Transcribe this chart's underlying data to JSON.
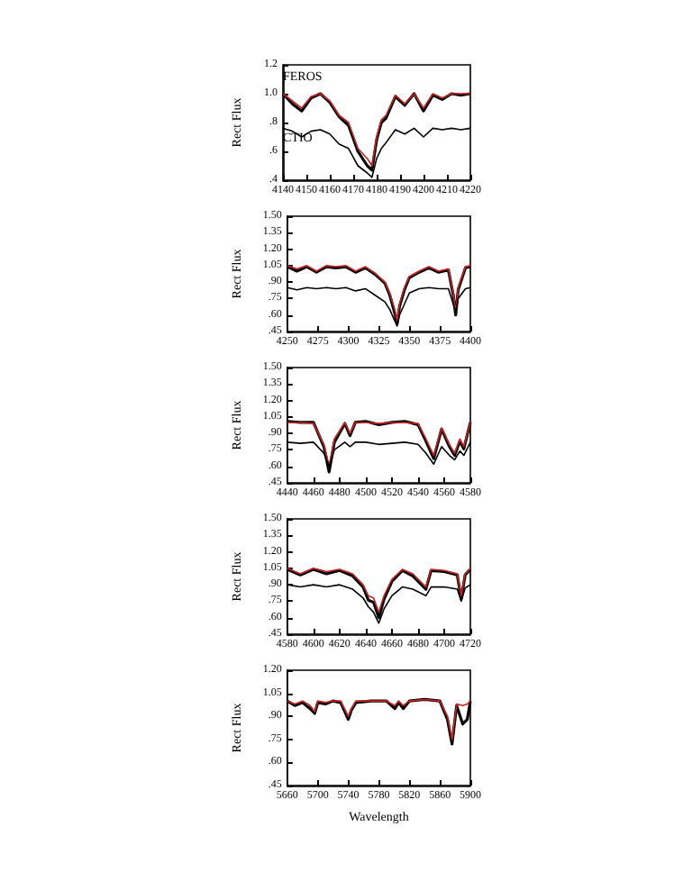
{
  "chart_data": [
    {
      "type": "line",
      "ylabel": "Rect Flux",
      "xlim": [
        4140,
        4220
      ],
      "xticks": [
        4140,
        4150,
        4160,
        4170,
        4180,
        4190,
        4200,
        4210,
        4220
      ],
      "ylim": [
        0.4,
        1.2
      ],
      "yticks": [
        {
          "value": 0.4,
          "label": ".4"
        },
        {
          "value": 0.6,
          "label": ".6"
        },
        {
          "value": 0.8,
          "label": ".8"
        },
        {
          "value": 1.0,
          "label": "1.0"
        },
        {
          "value": 1.2,
          "label": "1.2"
        }
      ],
      "grid": false,
      "marker": "none",
      "x": [
        4140,
        4144,
        4148,
        4152,
        4156,
        4160,
        4164,
        4168,
        4172,
        4176,
        4178,
        4180,
        4182,
        4184,
        4188,
        4192,
        4196,
        4200,
        4204,
        4208,
        4212,
        4216,
        4220
      ],
      "annotations": [
        "FEROS",
        "CTIO"
      ],
      "series": [
        {
          "color": "#000000",
          "values": [
            1.0,
            0.93,
            0.88,
            0.97,
            1.0,
            0.94,
            0.84,
            0.78,
            0.6,
            0.5,
            0.47,
            0.68,
            0.8,
            0.83,
            0.98,
            0.92,
            1.0,
            0.88,
            0.99,
            0.96,
            1.0,
            0.99,
            1.0
          ]
        },
        {
          "color": "#cc2222",
          "values": [
            1.0,
            0.95,
            0.9,
            0.98,
            1.0,
            0.95,
            0.85,
            0.8,
            0.62,
            0.55,
            0.5,
            0.7,
            0.82,
            0.85,
            0.99,
            0.93,
            1.0,
            0.9,
            1.0,
            0.97,
            1.0,
            1.0,
            1.0
          ]
        },
        {
          "color": "#000000",
          "values": [
            0.76,
            0.74,
            0.7,
            0.74,
            0.75,
            0.72,
            0.65,
            0.62,
            0.5,
            0.45,
            0.42,
            0.55,
            0.62,
            0.66,
            0.75,
            0.72,
            0.76,
            0.7,
            0.76,
            0.75,
            0.76,
            0.75,
            0.76
          ]
        }
      ]
    },
    {
      "type": "line",
      "ylabel": "Rect Flux",
      "xlim": [
        4250,
        4400
      ],
      "xticks": [
        4250,
        4275,
        4300,
        4325,
        4350,
        4375,
        4400
      ],
      "ylim": [
        0.45,
        1.5
      ],
      "yticks": [
        {
          "value": 0.45,
          "label": ".45"
        },
        {
          "value": 0.6,
          "label": ".60"
        },
        {
          "value": 0.75,
          "label": ".75"
        },
        {
          "value": 0.9,
          "label": ".90"
        },
        {
          "value": 1.05,
          "label": "1.05"
        },
        {
          "value": 1.2,
          "label": "1.20"
        },
        {
          "value": 1.35,
          "label": "1.35"
        },
        {
          "value": 1.5,
          "label": "1.50"
        }
      ],
      "grid": false,
      "marker": "none",
      "x": [
        4250,
        4258,
        4266,
        4274,
        4282,
        4290,
        4298,
        4306,
        4314,
        4322,
        4330,
        4334,
        4338,
        4340,
        4342,
        4346,
        4350,
        4358,
        4366,
        4374,
        4382,
        4386,
        4388,
        4390,
        4396,
        4400
      ],
      "series": [
        {
          "color": "#000000",
          "values": [
            1.04,
            1.0,
            1.04,
            0.99,
            1.04,
            1.03,
            1.04,
            0.99,
            1.03,
            0.97,
            0.89,
            0.78,
            0.62,
            0.52,
            0.68,
            0.83,
            0.94,
            0.99,
            1.03,
            0.99,
            1.01,
            0.78,
            0.6,
            0.83,
            1.03,
            1.04
          ]
        },
        {
          "color": "#cc2222",
          "values": [
            1.05,
            1.02,
            1.05,
            1.0,
            1.05,
            1.04,
            1.05,
            1.0,
            1.04,
            0.98,
            0.9,
            0.8,
            0.65,
            0.55,
            0.7,
            0.85,
            0.95,
            1.0,
            1.04,
            1.0,
            1.02,
            0.8,
            0.62,
            0.85,
            1.04,
            1.05
          ]
        },
        {
          "color": "#000000",
          "values": [
            0.85,
            0.83,
            0.85,
            0.84,
            0.85,
            0.84,
            0.85,
            0.82,
            0.84,
            0.78,
            0.72,
            0.65,
            0.55,
            0.5,
            0.6,
            0.7,
            0.8,
            0.84,
            0.85,
            0.84,
            0.84,
            0.7,
            0.62,
            0.75,
            0.84,
            0.85
          ]
        }
      ]
    },
    {
      "type": "line",
      "ylabel": "Rect Flux",
      "xlim": [
        4440,
        4580
      ],
      "xticks": [
        4440,
        4460,
        4480,
        4500,
        4520,
        4540,
        4560,
        4580
      ],
      "ylim": [
        0.45,
        1.5
      ],
      "yticks": [
        {
          "value": 0.45,
          "label": ".45"
        },
        {
          "value": 0.6,
          "label": ".60"
        },
        {
          "value": 0.75,
          "label": ".75"
        },
        {
          "value": 0.9,
          "label": ".90"
        },
        {
          "value": 1.05,
          "label": "1.05"
        },
        {
          "value": 1.2,
          "label": "1.20"
        },
        {
          "value": 1.35,
          "label": "1.35"
        },
        {
          "value": 1.5,
          "label": "1.50"
        }
      ],
      "grid": false,
      "marker": "none",
      "x": [
        4440,
        4450,
        4460,
        4468,
        4472,
        4476,
        4484,
        4488,
        4492,
        4500,
        4510,
        4520,
        4530,
        4540,
        4546,
        4552,
        4558,
        4564,
        4568,
        4572,
        4575,
        4580
      ],
      "series": [
        {
          "color": "#000000",
          "values": [
            1.01,
            1.0,
            1.0,
            0.78,
            0.55,
            0.82,
            0.99,
            0.88,
            1.0,
            1.01,
            0.98,
            1.0,
            1.01,
            0.98,
            0.83,
            0.67,
            0.94,
            0.78,
            0.7,
            0.83,
            0.76,
            1.0
          ]
        },
        {
          "color": "#cc2222",
          "values": [
            1.0,
            1.0,
            0.99,
            0.8,
            0.6,
            0.85,
            1.0,
            0.9,
            1.0,
            1.0,
            0.99,
            1.0,
            1.0,
            0.99,
            0.85,
            0.7,
            0.95,
            0.8,
            0.72,
            0.85,
            0.78,
            1.0
          ]
        },
        {
          "color": "#000000",
          "values": [
            0.82,
            0.81,
            0.82,
            0.72,
            0.6,
            0.75,
            0.82,
            0.78,
            0.82,
            0.82,
            0.8,
            0.81,
            0.82,
            0.8,
            0.72,
            0.62,
            0.78,
            0.7,
            0.66,
            0.74,
            0.7,
            0.82
          ]
        }
      ]
    },
    {
      "type": "line",
      "ylabel": "Rect Flux",
      "xlim": [
        4580,
        4720
      ],
      "xticks": [
        4580,
        4600,
        4620,
        4640,
        4660,
        4680,
        4700,
        4720
      ],
      "ylim": [
        0.45,
        1.5
      ],
      "yticks": [
        {
          "value": 0.45,
          "label": ".45"
        },
        {
          "value": 0.6,
          "label": ".60"
        },
        {
          "value": 0.75,
          "label": ".75"
        },
        {
          "value": 0.9,
          "label": ".90"
        },
        {
          "value": 1.05,
          "label": "1.05"
        },
        {
          "value": 1.2,
          "label": "1.20"
        },
        {
          "value": 1.35,
          "label": "1.35"
        },
        {
          "value": 1.5,
          "label": "1.50"
        }
      ],
      "grid": false,
      "marker": "none",
      "x": [
        4580,
        4590,
        4600,
        4610,
        4620,
        4630,
        4638,
        4642,
        4646,
        4650,
        4654,
        4660,
        4668,
        4676,
        4686,
        4690,
        4700,
        4710,
        4713,
        4716,
        4720
      ],
      "series": [
        {
          "color": "#000000",
          "values": [
            1.04,
            0.99,
            1.04,
            1.0,
            1.03,
            0.98,
            0.88,
            0.76,
            0.74,
            0.6,
            0.77,
            0.93,
            1.03,
            0.98,
            0.86,
            1.03,
            1.02,
            0.99,
            0.77,
            0.99,
            1.04
          ]
        },
        {
          "color": "#cc2222",
          "values": [
            1.05,
            1.0,
            1.05,
            1.02,
            1.04,
            1.0,
            0.9,
            0.8,
            0.78,
            0.65,
            0.8,
            0.95,
            1.04,
            1.0,
            0.88,
            1.04,
            1.03,
            1.0,
            0.8,
            1.0,
            1.05
          ]
        },
        {
          "color": "#000000",
          "values": [
            0.9,
            0.88,
            0.9,
            0.88,
            0.9,
            0.86,
            0.78,
            0.7,
            0.65,
            0.55,
            0.68,
            0.8,
            0.88,
            0.86,
            0.8,
            0.88,
            0.88,
            0.86,
            0.75,
            0.87,
            0.9
          ]
        }
      ]
    },
    {
      "type": "line",
      "ylabel": "Rect Flux",
      "xlabel": "Wavelength",
      "xlim": [
        5660,
        5900
      ],
      "xticks": [
        5660,
        5700,
        5740,
        5780,
        5820,
        5860,
        5900
      ],
      "ylim": [
        0.45,
        1.2
      ],
      "yticks": [
        {
          "value": 0.45,
          "label": ".45"
        },
        {
          "value": 0.6,
          "label": ".60"
        },
        {
          "value": 0.75,
          "label": ".75"
        },
        {
          "value": 0.9,
          "label": ".90"
        },
        {
          "value": 1.05,
          "label": "1.05"
        },
        {
          "value": 1.2,
          "label": "1.20"
        }
      ],
      "grid": false,
      "marker": "none",
      "x": [
        5660,
        5670,
        5680,
        5690,
        5696,
        5700,
        5710,
        5720,
        5730,
        5740,
        5744,
        5750,
        5770,
        5790,
        5801,
        5806,
        5812,
        5820,
        5840,
        5860,
        5870,
        5876,
        5882,
        5890,
        5896,
        5900
      ],
      "series": [
        {
          "color": "#000000",
          "values": [
            1.0,
            0.97,
            0.99,
            0.95,
            0.92,
            0.99,
            0.98,
            1.0,
            0.99,
            0.88,
            0.94,
            0.99,
            1.0,
            1.0,
            0.95,
            0.99,
            0.95,
            1.0,
            1.01,
            1.0,
            0.88,
            0.72,
            0.97,
            0.85,
            0.88,
            1.0
          ]
        },
        {
          "color": "#cc2222",
          "values": [
            1.0,
            0.98,
            1.0,
            0.97,
            0.93,
            1.0,
            0.99,
            1.0,
            1.0,
            0.9,
            0.95,
            1.0,
            1.0,
            1.0,
            0.97,
            1.0,
            0.97,
            1.0,
            1.01,
            1.0,
            0.9,
            0.75,
            0.98,
            0.97,
            0.98,
            1.0
          ]
        }
      ]
    }
  ]
}
